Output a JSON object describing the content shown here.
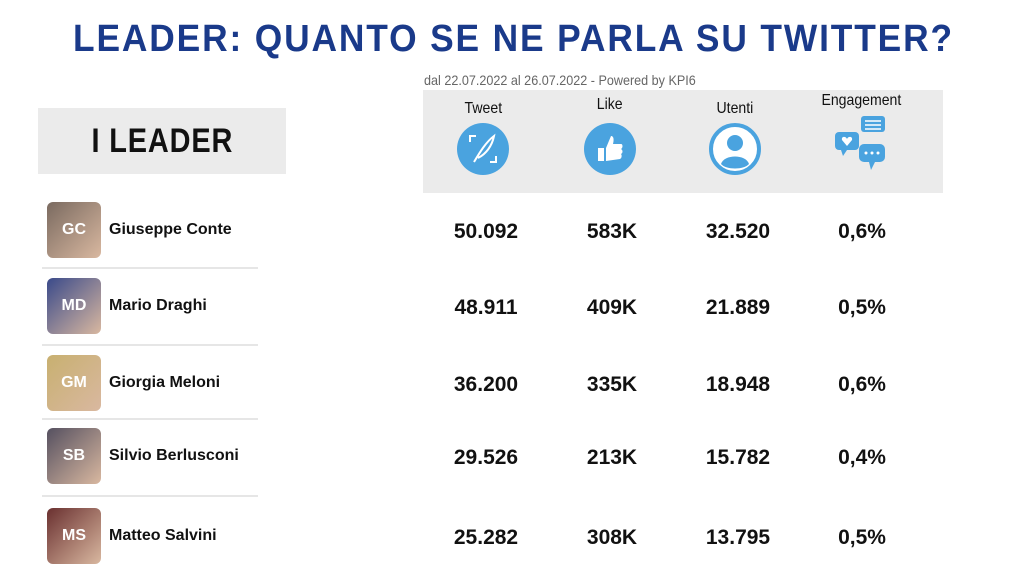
{
  "title": "LEADER: QUANTO SE NE PARLA SU TWITTER?",
  "subtitle": "dal 22.07.2022 al 26.07.2022 - Powered by KPI6",
  "leaders_heading": "I LEADER",
  "accent_color": "#4aa3df",
  "title_color": "#1a3a8a",
  "columns": [
    {
      "label": "Tweet",
      "icon": "feather-icon"
    },
    {
      "label": "Like",
      "icon": "thumbs-up-icon"
    },
    {
      "label": "Utenti",
      "icon": "user-icon"
    },
    {
      "label": "Engagement",
      "icon": "chat-bubbles-icon"
    }
  ],
  "leaders": [
    {
      "name": "Giuseppe Conte",
      "initials": "GC",
      "tweet": "50.092",
      "like": "583K",
      "utenti": "32.520",
      "engagement": "0,6%"
    },
    {
      "name": "Mario Draghi",
      "initials": "MD",
      "tweet": "48.911",
      "like": "409K",
      "utenti": "21.889",
      "engagement": "0,5%"
    },
    {
      "name": "Giorgia Meloni",
      "initials": "GM",
      "tweet": "36.200",
      "like": "335K",
      "utenti": "18.948",
      "engagement": "0,6%"
    },
    {
      "name": "Silvio Berlusconi",
      "initials": "SB",
      "tweet": "29.526",
      "like": "213K",
      "utenti": "15.782",
      "engagement": "0,4%"
    },
    {
      "name": "Matteo Salvini",
      "initials": "MS",
      "tweet": "25.282",
      "like": "308K",
      "utenti": "13.795",
      "engagement": "0,5%"
    }
  ]
}
